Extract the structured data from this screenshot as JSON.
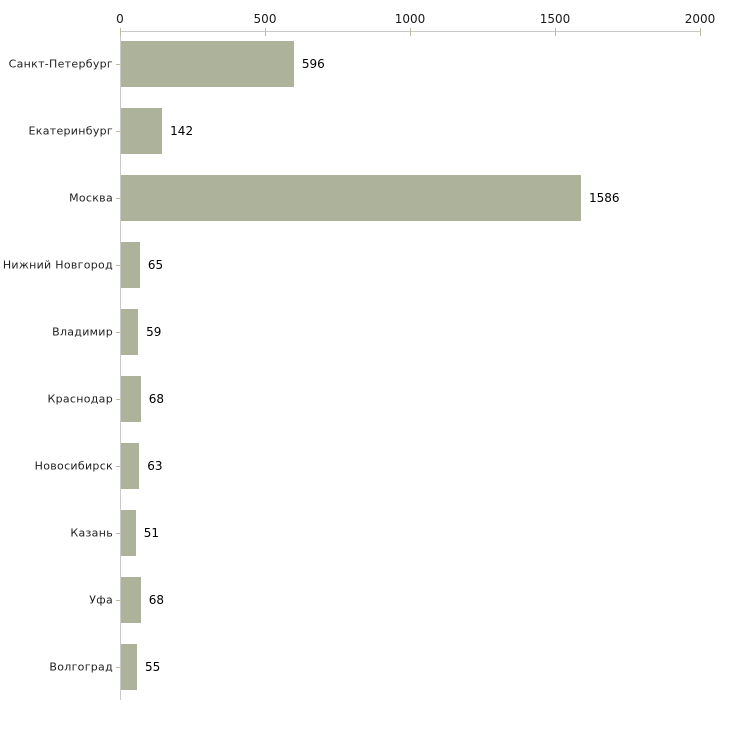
{
  "chart_data": {
    "type": "bar",
    "orientation": "horizontal",
    "title": "",
    "xlabel": "",
    "ylabel": "",
    "categories": [
      "Санкт-Петербург",
      "Екатеринбург",
      "Москва",
      "Нижний Новгород",
      "Владимир",
      "Краснодар",
      "Новосибирск",
      "Казань",
      "Уфа",
      "Волгоград"
    ],
    "values": [
      596,
      142,
      1586,
      65,
      59,
      68,
      63,
      51,
      68,
      55
    ],
    "value_labels": [
      "596",
      "142",
      "1586",
      "65",
      "59",
      "68",
      "63",
      "51",
      "68",
      "55"
    ],
    "xlim": [
      0,
      2000
    ],
    "x_ticks": [
      0,
      500,
      1000,
      1500,
      2000
    ],
    "x_tick_labels": [
      "0",
      "500",
      "1000",
      "1500",
      "2000"
    ],
    "grid": false,
    "legend": "none",
    "axis_position": "top-left",
    "colors": {
      "bar": "#adb29b",
      "axis_line": "#c9c9c9",
      "tick_mark": "#b9bd9c",
      "tick_label": "#1a1a1a",
      "category_label": "#1f1f1f",
      "value_label": "#000000",
      "background": "#ffffff"
    }
  }
}
